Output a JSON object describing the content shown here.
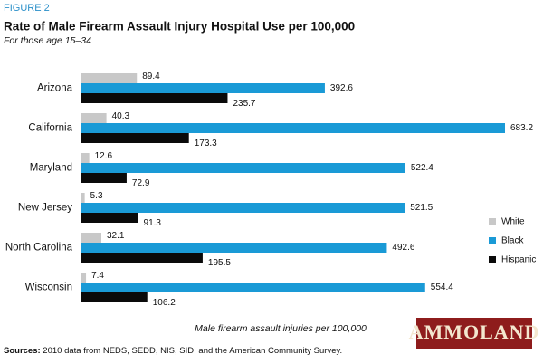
{
  "chart_data": {
    "type": "bar",
    "orientation": "horizontal",
    "figure_label": "FIGURE 2",
    "title": "Rate of Male Firearm Assault Injury Hospital Use per 100,000",
    "subtitle": "For those age 15–34",
    "categories": [
      "Arizona",
      "California",
      "Maryland",
      "New Jersey",
      "North Carolina",
      "Wisconsin"
    ],
    "series": [
      {
        "name": "White",
        "color": "#c8c8c8",
        "values": [
          89.4,
          40.3,
          12.6,
          5.3,
          32.1,
          7.4
        ]
      },
      {
        "name": "Black",
        "color": "#1a9ad6",
        "values": [
          392.6,
          683.2,
          522.4,
          521.5,
          492.6,
          554.4
        ]
      },
      {
        "name": "Hispanic",
        "color": "#0a0a0a",
        "values": [
          235.7,
          173.3,
          72.9,
          91.3,
          195.5,
          106.2
        ]
      }
    ],
    "legend": "right",
    "x_label": "Male firearm assault injuries per 100,000",
    "sources_label": "Sources:",
    "sources": "2010 data from NEDS, SEDD, NIS, SID, and the American Community Survey.",
    "watermark": "AMMOLAND"
  }
}
